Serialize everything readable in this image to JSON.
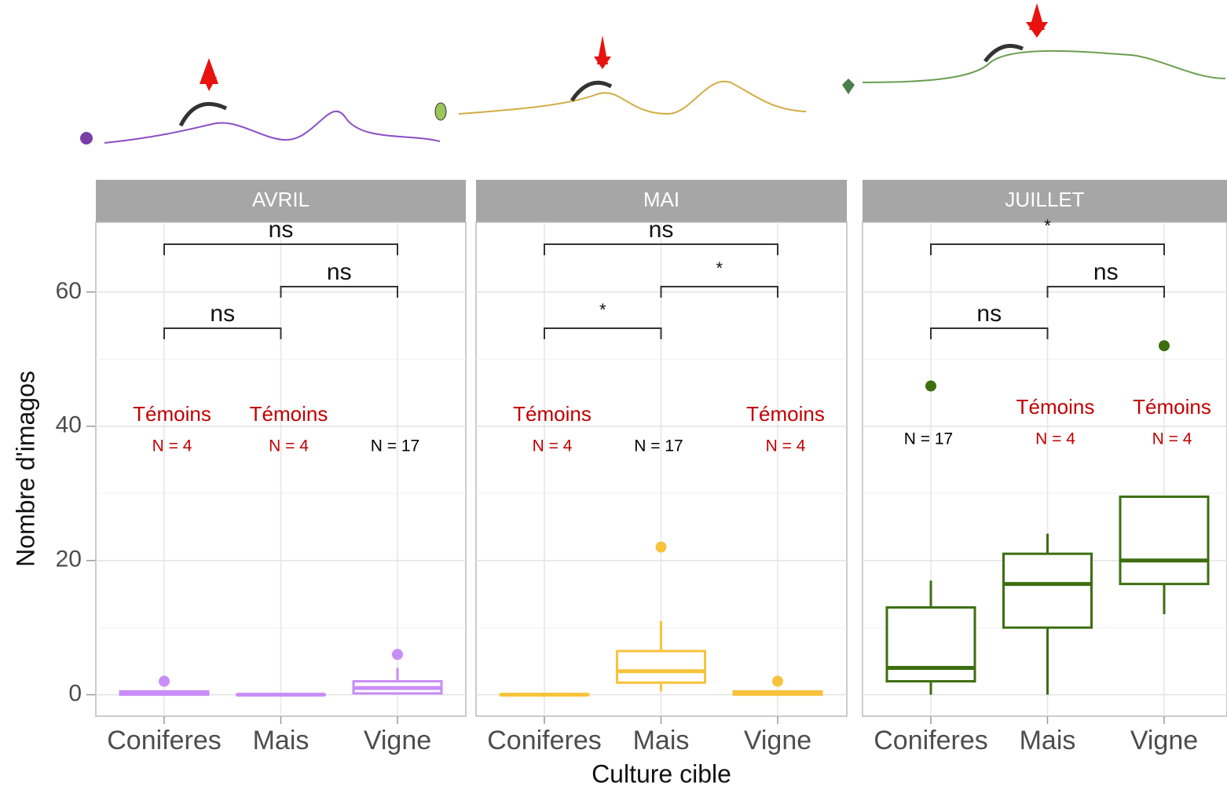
{
  "chart_data": {
    "type": "box",
    "ylabel": "Nombre d'imagos",
    "xlabel": "Culture cible",
    "ylim": [
      -3.2,
      70.4
    ],
    "yticks": [
      0,
      20,
      40,
      60
    ],
    "grid": true,
    "categories": [
      "Coniferes",
      "Mais",
      "Vigne"
    ],
    "panels": [
      {
        "title": "AVRIL",
        "color": "#c98df7",
        "boxes": [
          {
            "min": 0,
            "q1": 0,
            "median": 0.25,
            "q3": 0.5,
            "max": 0.5,
            "outliers": [
              2
            ]
          },
          {
            "min": 0,
            "q1": 0,
            "median": 0,
            "q3": 0,
            "max": 0,
            "outliers": []
          },
          {
            "min": 0,
            "q1": 0.2,
            "median": 1,
            "q3": 2,
            "max": 4,
            "outliers": [
              6
            ]
          }
        ],
        "group_labels": [
          "Témoins",
          "Témoins",
          null
        ],
        "n_labels": [
          "N = 4",
          "N = 4",
          "N = 17"
        ],
        "comparisons": [
          {
            "groups": [
              "Coniferes",
              "Mais"
            ],
            "label": "ns"
          },
          {
            "groups": [
              "Mais",
              "Vigne"
            ],
            "label": "ns"
          },
          {
            "groups": [
              "Coniferes",
              "Vigne"
            ],
            "label": "ns"
          }
        ]
      },
      {
        "title": "MAI",
        "color": "#f7c33c",
        "boxes": [
          {
            "min": 0,
            "q1": 0,
            "median": 0,
            "q3": 0,
            "max": 0,
            "outliers": []
          },
          {
            "min": 0.5,
            "q1": 1.8,
            "median": 3.5,
            "q3": 6.5,
            "max": 11,
            "outliers": [
              22
            ]
          },
          {
            "min": 0,
            "q1": 0,
            "median": 0.25,
            "q3": 0.5,
            "max": 0.5,
            "outliers": [
              2
            ]
          }
        ],
        "group_labels": [
          "Témoins",
          null,
          "Témoins"
        ],
        "n_labels": [
          "N = 4",
          "N = 17",
          "N = 4"
        ],
        "comparisons": [
          {
            "groups": [
              "Coniferes",
              "Mais"
            ],
            "label": "*"
          },
          {
            "groups": [
              "Mais",
              "Vigne"
            ],
            "label": "*"
          },
          {
            "groups": [
              "Coniferes",
              "Vigne"
            ],
            "label": "ns"
          }
        ]
      },
      {
        "title": "JUILLET",
        "color": "#3d6e10",
        "boxes": [
          {
            "min": 0,
            "q1": 2,
            "median": 4,
            "q3": 13,
            "max": 17,
            "outliers": [
              46
            ]
          },
          {
            "min": 0,
            "q1": 10,
            "median": 16.5,
            "q3": 21,
            "max": 24,
            "outliers": []
          },
          {
            "min": 12,
            "q1": 16.5,
            "median": 20,
            "q3": 29.5,
            "max": 29.5,
            "outliers": [
              52
            ]
          }
        ],
        "group_labels": [
          null,
          "Témoins",
          "Témoins"
        ],
        "n_labels": [
          "N = 17",
          "N = 4",
          "N = 4"
        ],
        "comparisons": [
          {
            "groups": [
              "Coniferes",
              "Mais"
            ],
            "label": "ns"
          },
          {
            "groups": [
              "Mais",
              "Vigne"
            ],
            "label": "ns"
          },
          {
            "groups": [
              "Coniferes",
              "Vigne"
            ],
            "label": "*"
          }
        ]
      }
    ]
  }
}
